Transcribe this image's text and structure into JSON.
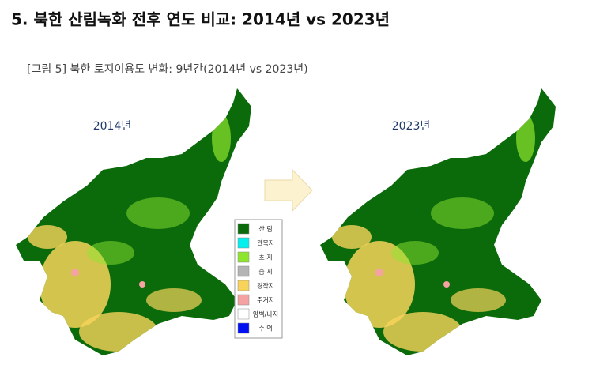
{
  "header": {
    "title": "5. 북한 산림녹화 전후 연도 비교: 2014년 vs 2023년"
  },
  "figure": {
    "caption": "[그림 5] 북한 토지이용도 변화: 9년간(2014년 vs 2023년)",
    "maps": [
      {
        "label": "2014년"
      },
      {
        "label": "2023년"
      }
    ],
    "legend": [
      {
        "label": "산 림",
        "color": "#0b6b0b"
      },
      {
        "label": "관목지",
        "color": "#00f0f0"
      },
      {
        "label": "초 지",
        "color": "#8ee52e"
      },
      {
        "label": "습 지",
        "color": "#b4b4b4"
      },
      {
        "label": "경작지",
        "color": "#f7d35a"
      },
      {
        "label": "주거지",
        "color": "#f4a2a2"
      },
      {
        "label": "암벽/나지",
        "color": "#ffffff"
      },
      {
        "label": "수 역",
        "color": "#0010f0"
      }
    ]
  }
}
